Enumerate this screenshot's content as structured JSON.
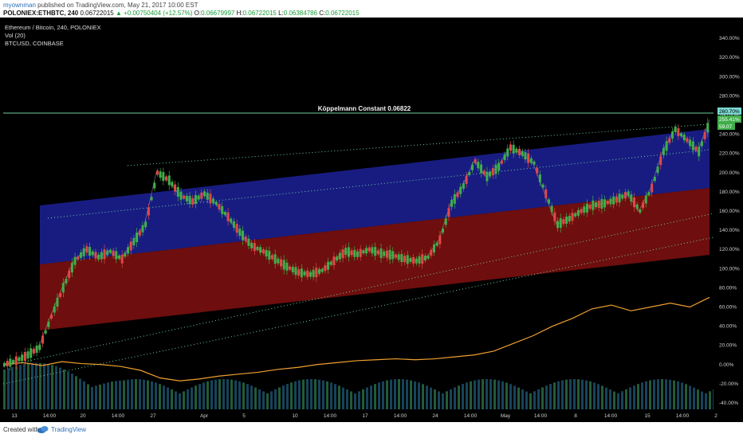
{
  "header": {
    "author": "myownman",
    "published_text": "published on TradingView.com, May 21, 2017 10:00 EST",
    "symbol": "POLONIEX:ETHBTC, 240",
    "open": "0.06722015",
    "change": "▲ +0.00750404 (+12.57%)",
    "o_label": "O:",
    "o_value": "0.06679997",
    "h_label": "H:",
    "h_value": "0.06722015",
    "l_label": "L:",
    "l_value": "0.06384786",
    "c_label": "C:",
    "c_value": "0.06722015"
  },
  "legend": {
    "main": "Ethereum / Bitcoin, 240, POLONIEX",
    "volume": "Vol (20)",
    "compare": "BTCUSD, COINBASE"
  },
  "annotation": "Köppelmann Constant 0.06822",
  "price_labels": {
    "line_top": "260.70%",
    "last": "255.41%",
    "volume": "59.07"
  },
  "footer": {
    "created_with": "Created with",
    "brand": "TradingView"
  },
  "colors": {
    "background": "#000000",
    "upper_channel": "#1b1f8f",
    "lower_channel": "#7a1010",
    "candle_up": "#3fae4a",
    "candle_down": "#e04848",
    "btc_line": "#f0a030",
    "volume_fill": "#1f5a7a",
    "guide_green": "#6fd0a0",
    "brand_blue": "#2e6fb8"
  },
  "chart_data": {
    "type": "line",
    "title": "Ethereum / Bitcoin, 240, POLONIEX",
    "y_axis_unit": "%",
    "ylim": [
      -45,
      360
    ],
    "y_ticks": [
      340,
      320,
      300,
      280,
      260,
      240,
      220,
      200,
      180,
      160,
      140,
      120,
      100,
      80,
      60,
      40,
      20,
      0,
      -20,
      -40
    ],
    "x_tick_labels": [
      "13",
      "14:00",
      "20",
      "14:00",
      "27",
      "Apr",
      "5",
      "10",
      "14:00",
      "17",
      "14:00",
      "24",
      "14:00",
      "May",
      "14:00",
      "8",
      "14:00",
      "15",
      "14:00",
      "2"
    ],
    "series": [
      {
        "name": "Ethereum / Bitcoin, 240, POLONIEX",
        "values": [
          0,
          4,
          10,
          18,
          50,
          80,
          108,
          120,
          112,
          118,
          110,
          128,
          146,
          200,
          192,
          176,
          170,
          178,
          168,
          154,
          138,
          124,
          118,
          110,
          102,
          96,
          94,
          98,
          108,
          118,
          115,
          120,
          116,
          114,
          110,
          108,
          112,
          130,
          168,
          186,
          212,
          196,
          206,
          226,
          220,
          210,
          178,
          146,
          152,
          160,
          166,
          168,
          172,
          178,
          160,
          184,
          222,
          245,
          234,
          222,
          255
        ]
      },
      {
        "name": "BTCUSD, COINBASE",
        "values": [
          0,
          2,
          -1,
          3,
          1,
          0,
          -2,
          -6,
          -14,
          -17,
          -15,
          -12,
          -10,
          -8,
          -5,
          -3,
          0,
          2,
          4,
          5,
          6,
          5,
          6,
          8,
          10,
          14,
          22,
          30,
          40,
          48,
          58,
          62,
          56,
          60,
          64,
          60,
          70
        ]
      }
    ]
  }
}
